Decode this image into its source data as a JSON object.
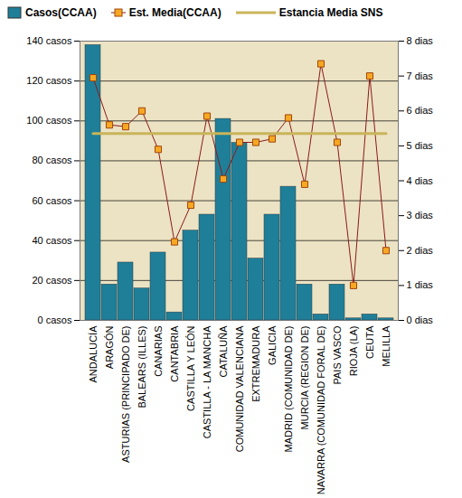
{
  "chart_data": {
    "type": "bar",
    "categories": [
      "ANDALUCÍA",
      "ARAGÓN",
      "ASTURIAS (PRINCIPADO DE)",
      "BALEARS (ILLES)",
      "CANARIAS",
      "CANTABRIA",
      "CASTILLA Y LEÓN",
      "CASTILLA - LA MANCHA",
      "CATALUÑA",
      "COMUNIDAD VALENCIANA",
      "EXTREMADURA",
      "GALICIA",
      "MADRID (COMUNIDAD DE)",
      "MURCIA (REGION DE)",
      "NAVARRA (COMUNIDAD FORAL DE)",
      "PAIS VASCO",
      "RIOJA (LA)",
      "CEUTA",
      "MELILLA"
    ],
    "series": [
      {
        "name": "Casos(CCAA)",
        "type": "bar",
        "color": "#1f7f99",
        "values": [
          138,
          18,
          29,
          16,
          34,
          4,
          45,
          53,
          101,
          89,
          31,
          53,
          67,
          18,
          3,
          18,
          1,
          3,
          1
        ]
      },
      {
        "name": "Est. Media(CCAA)",
        "type": "line",
        "axis": "y2",
        "color": "#8b1a1a",
        "marker": "square",
        "values": [
          6.95,
          5.6,
          5.55,
          6.0,
          4.9,
          2.25,
          3.3,
          5.85,
          4.05,
          5.1,
          5.1,
          5.2,
          5.8,
          3.9,
          7.35,
          5.1,
          1.0,
          7.0,
          2.0
        ]
      },
      {
        "name": "Estancia Media SNS",
        "type": "line",
        "axis": "y2",
        "color": "#c8b55a",
        "values": [
          5.35,
          5.35,
          5.35,
          5.35,
          5.35,
          5.35,
          5.35,
          5.35,
          5.35,
          5.35,
          5.35,
          5.35,
          5.35,
          5.35,
          5.35,
          5.35,
          5.35,
          5.35,
          5.35
        ]
      }
    ],
    "ylim": [
      0,
      140
    ],
    "yticks": [
      {
        "value": 0,
        "label": "0 casos"
      },
      {
        "value": 20,
        "label": "20 casos"
      },
      {
        "value": 40,
        "label": "40 casos"
      },
      {
        "value": 60,
        "label": "60 casos"
      },
      {
        "value": 80,
        "label": "80 casos"
      },
      {
        "value": 100,
        "label": "100 casos"
      },
      {
        "value": 120,
        "label": "120 casos"
      },
      {
        "value": 140,
        "label": "140 casos"
      }
    ],
    "y2lim": [
      0,
      8
    ],
    "y2ticks": [
      {
        "value": 0,
        "label": "0 dias"
      },
      {
        "value": 1,
        "label": "1 dias"
      },
      {
        "value": 2,
        "label": "2 dias"
      },
      {
        "value": 3,
        "label": "3 dias"
      },
      {
        "value": 4,
        "label": "4 dias"
      },
      {
        "value": 5,
        "label": "5 dias"
      },
      {
        "value": 6,
        "label": "6 dias"
      },
      {
        "value": 7,
        "label": "7 dias"
      },
      {
        "value": 8,
        "label": "8 dias"
      }
    ],
    "grid": true,
    "legend": "top-left"
  }
}
